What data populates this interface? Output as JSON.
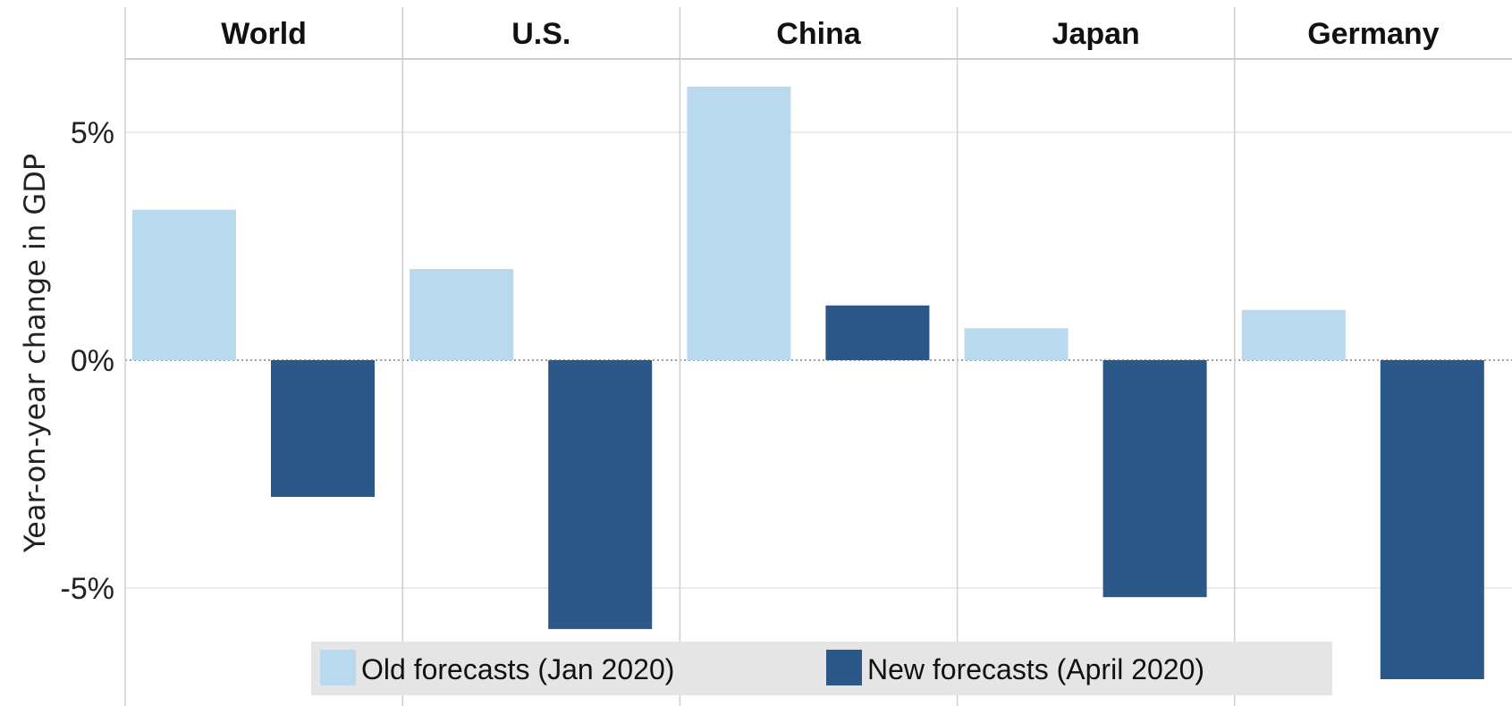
{
  "chart_data": {
    "type": "bar",
    "categories": [
      "World",
      "U.S.",
      "China",
      "Japan",
      "Germany"
    ],
    "series": [
      {
        "name": "Old forecasts (Jan 2020)",
        "color": "#b9d9ee",
        "values": [
          3.3,
          2.0,
          6.0,
          0.7,
          1.1
        ]
      },
      {
        "name": "New forecasts (April 2020)",
        "color": "#2b5886",
        "values": [
          -3.0,
          -5.9,
          1.2,
          -5.2,
          -7.0
        ]
      }
    ],
    "ylabel": "Year-on-year change in GDP",
    "y_ticks": [
      {
        "value": 5,
        "label": "5%"
      },
      {
        "value": 0,
        "label": "0%"
      },
      {
        "value": -5,
        "label": "-5%"
      }
    ],
    "ylim": [
      -7.5,
      7.9
    ],
    "grid": true,
    "legend_position": "bottom-center"
  }
}
